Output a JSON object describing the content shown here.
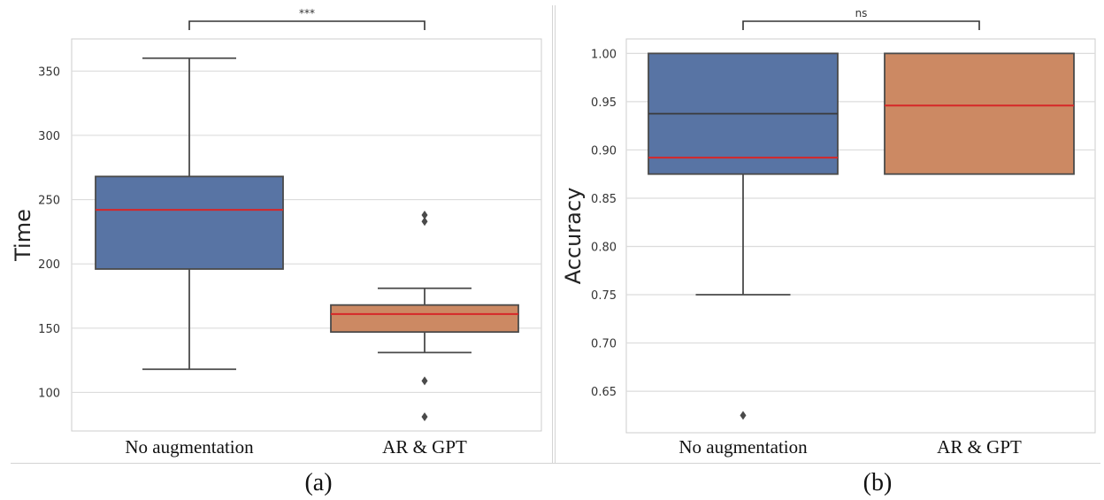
{
  "chart_data": [
    {
      "type": "box",
      "panel_label": "(a)",
      "ylabel": "Time",
      "xlabel": "",
      "ylim": [
        70,
        375
      ],
      "yticks": [
        100,
        150,
        200,
        250,
        300,
        350
      ],
      "categories": [
        "No augmentation",
        "AR & GPT"
      ],
      "significance": "***",
      "grid": true,
      "colors": [
        "#5874a4",
        "#cc8963"
      ],
      "median_color": "#d62728",
      "boxes": [
        {
          "category": "No augmentation",
          "whislo": 118,
          "q1": 196,
          "med": 242,
          "q3": 268,
          "whishi": 360,
          "fliers": []
        },
        {
          "category": "AR & GPT",
          "whislo": 131,
          "q1": 147,
          "med": 161,
          "q3": 168,
          "whishi": 181,
          "fliers": [
            238,
            233,
            109,
            81
          ]
        }
      ]
    },
    {
      "type": "box",
      "panel_label": "(b)",
      "ylabel": "Accuracy",
      "xlabel": "",
      "ylim": [
        0.607,
        1.015
      ],
      "yticks": [
        0.65,
        0.7,
        0.75,
        0.8,
        0.85,
        0.9,
        0.95,
        1.0
      ],
      "categories": [
        "No augmentation",
        "AR & GPT"
      ],
      "significance": "ns",
      "grid": true,
      "colors": [
        "#5874a4",
        "#cc8963"
      ],
      "median_color": "#d62728",
      "boxes": [
        {
          "category": "No augmentation",
          "whislo": 0.75,
          "q1": 0.875,
          "med": 0.892,
          "q3": 1.0,
          "whishi": 1.0,
          "extra_line": 0.9375,
          "fliers": [
            0.625
          ]
        },
        {
          "category": "AR & GPT",
          "whislo": 0.875,
          "q1": 0.875,
          "med": 0.946,
          "q3": 1.0,
          "whishi": 1.0,
          "fliers": []
        }
      ]
    }
  ]
}
